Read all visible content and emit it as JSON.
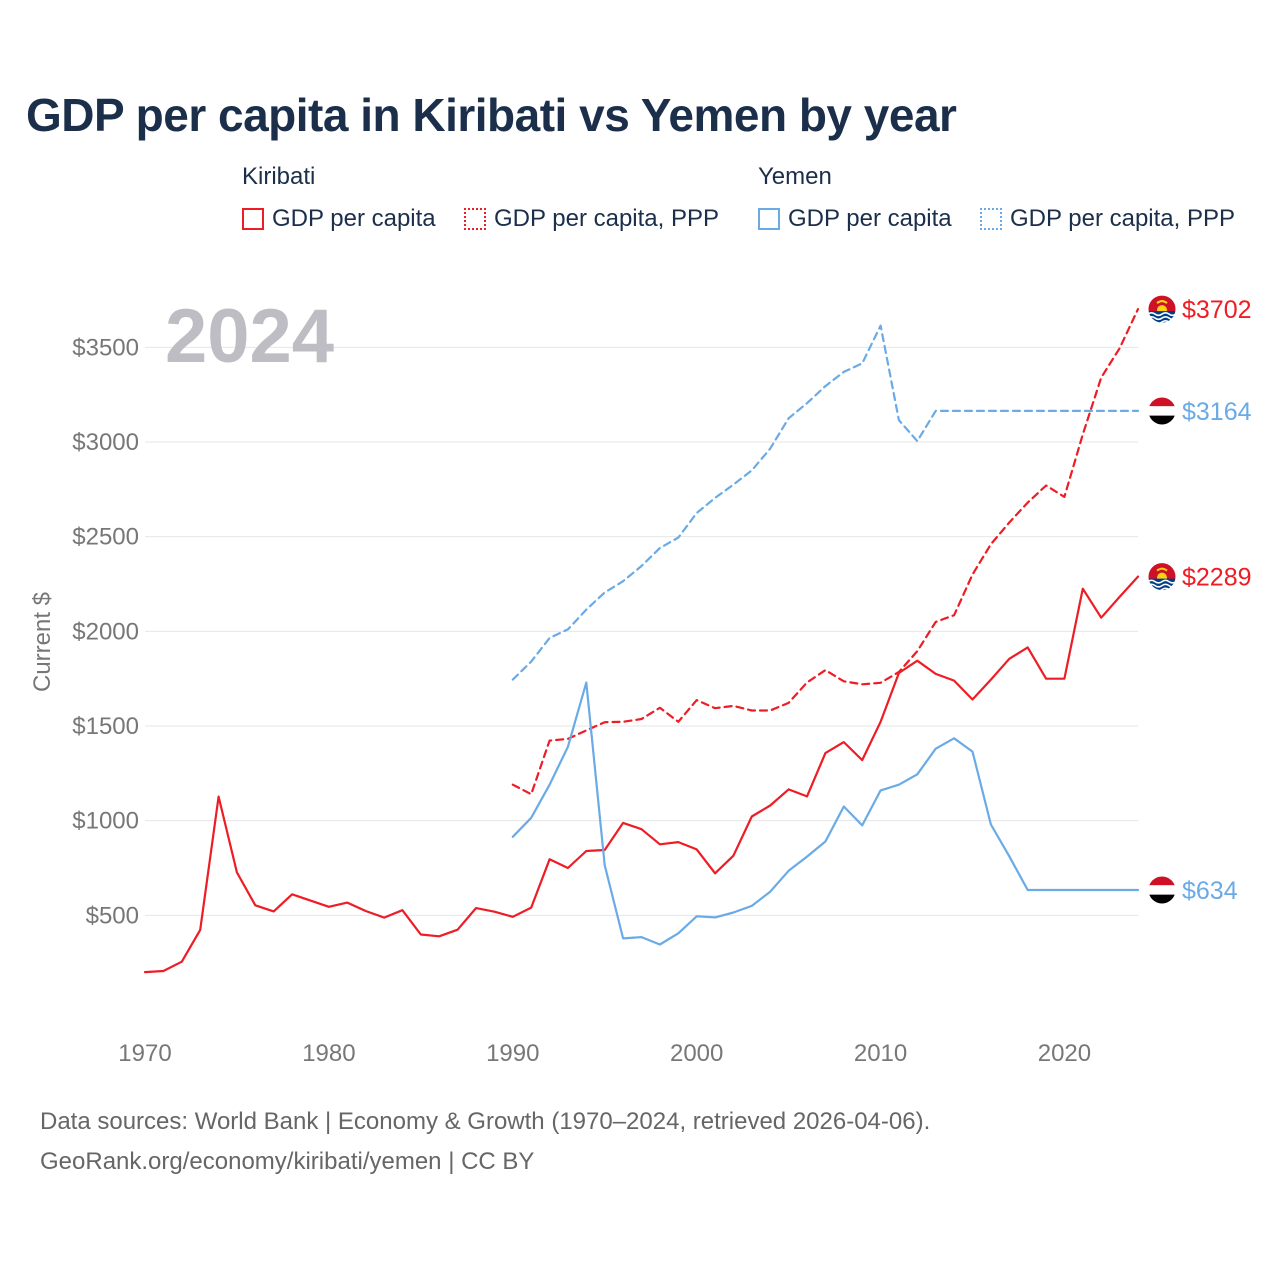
{
  "title": "GDP per capita in Kiribati vs Yemen by year",
  "legend": {
    "groups": [
      {
        "name": "Kiribati",
        "items": [
          {
            "label": "GDP per capita",
            "style": "solid",
            "color": "#ee1c24"
          },
          {
            "label": "GDP per capita, PPP",
            "style": "dotted",
            "color": "#ee1c24"
          }
        ]
      },
      {
        "name": "Yemen",
        "items": [
          {
            "label": "GDP per capita",
            "style": "solid",
            "color": "#6aaae6"
          },
          {
            "label": "GDP per capita, PPP",
            "style": "dotted",
            "color": "#6aaae6"
          }
        ]
      }
    ]
  },
  "year_overlay": "2024",
  "footer": {
    "sources": "Data sources: World Bank | Economy & Growth (1970–2024, retrieved 2026-04-06).",
    "link": "GeoRank.org/economy/kiribati/yemen | CC BY"
  },
  "colors": {
    "kiribati": "#ee1c24",
    "yemen": "#6aaae6",
    "title": "#1b2f4b",
    "axis_text": "#777777"
  },
  "chart_data": {
    "type": "line",
    "title": "GDP per capita in Kiribati vs Yemen by year",
    "xlabel": "",
    "ylabel": "Current $",
    "xlim": [
      1970,
      2024
    ],
    "ylim": [
      0,
      3750
    ],
    "x_ticks": [
      1970,
      1980,
      1990,
      2000,
      2010,
      2020
    ],
    "y_ticks": [
      500,
      1000,
      1500,
      2000,
      2500,
      3000,
      3500
    ],
    "y_tick_labels": [
      "$500",
      "$1000",
      "$1500",
      "$2000",
      "$2500",
      "$3000",
      "$3500"
    ],
    "grid": true,
    "series": [
      {
        "name": "Kiribati GDP per capita",
        "country": "kiribati",
        "style": "solid",
        "color": "#ee1c24",
        "x": [
          1970,
          1971,
          1972,
          1973,
          1974,
          1975,
          1976,
          1977,
          1978,
          1979,
          1980,
          1981,
          1982,
          1983,
          1984,
          1985,
          1986,
          1987,
          1988,
          1989,
          1990,
          1991,
          1992,
          1993,
          1994,
          1995,
          1996,
          1997,
          1998,
          1999,
          2000,
          2001,
          2002,
          2003,
          2004,
          2005,
          2006,
          2007,
          2008,
          2009,
          2010,
          2011,
          2012,
          2013,
          2014,
          2015,
          2016,
          2017,
          2018,
          2019,
          2020,
          2021,
          2022,
          2023,
          2024
        ],
        "y": [
          200,
          206,
          255,
          423,
          1127,
          727,
          553,
          521,
          611,
          578,
          545,
          567,
          523,
          488,
          527,
          399,
          389,
          424,
          538,
          519,
          492,
          541,
          796,
          750,
          840,
          845,
          988,
          955,
          875,
          887,
          848,
          722,
          815,
          1022,
          1080,
          1165,
          1128,
          1357,
          1415,
          1320,
          1522,
          1780,
          1845,
          1775,
          1740,
          1640,
          1745,
          1855,
          1915,
          1750,
          1750,
          2225,
          2072,
          2182,
          2289
        ],
        "end_label": "$2289"
      },
      {
        "name": "Kiribati GDP per capita, PPP",
        "country": "kiribati",
        "style": "dashed",
        "color": "#ee1c24",
        "x": [
          1990,
          1991,
          1992,
          1993,
          1994,
          1995,
          1996,
          1997,
          1998,
          1999,
          2000,
          2001,
          2002,
          2003,
          2004,
          2005,
          2006,
          2007,
          2008,
          2009,
          2010,
          2011,
          2012,
          2013,
          2014,
          2015,
          2016,
          2017,
          2018,
          2019,
          2020,
          2021,
          2022,
          2023,
          2024
        ],
        "y": [
          1190,
          1140,
          1423,
          1432,
          1477,
          1520,
          1522,
          1537,
          1596,
          1522,
          1637,
          1594,
          1606,
          1582,
          1582,
          1622,
          1730,
          1795,
          1736,
          1720,
          1728,
          1785,
          1895,
          2050,
          2085,
          2300,
          2460,
          2575,
          2680,
          2770,
          2710,
          3040,
          3340,
          3495,
          3702
        ],
        "end_label": "$3702"
      },
      {
        "name": "Yemen GDP per capita",
        "country": "yemen",
        "style": "solid",
        "color": "#6aaae6",
        "x": [
          1990,
          1991,
          1992,
          1993,
          1994,
          1995,
          1996,
          1997,
          1998,
          1999,
          2000,
          2001,
          2002,
          2003,
          2004,
          2005,
          2006,
          2007,
          2008,
          2009,
          2010,
          2011,
          2012,
          2013,
          2014,
          2015,
          2016,
          2017,
          2018,
          2019,
          2020,
          2021,
          2022,
          2023,
          2024
        ],
        "y": [
          915,
          1015,
          1190,
          1390,
          1730,
          765,
          378,
          385,
          346,
          405,
          495,
          489,
          515,
          550,
          625,
          735,
          810,
          890,
          1075,
          975,
          1160,
          1190,
          1245,
          1380,
          1435,
          1365,
          980,
          812,
          634,
          634,
          634,
          634,
          634,
          634,
          634
        ],
        "end_label": "$634"
      },
      {
        "name": "Yemen GDP per capita, PPP",
        "country": "yemen",
        "style": "dashed",
        "color": "#6aaae6",
        "x": [
          1990,
          1991,
          1992,
          1993,
          1994,
          1995,
          1996,
          1997,
          1998,
          1999,
          2000,
          2001,
          2002,
          2003,
          2004,
          2005,
          2006,
          2007,
          2008,
          2009,
          2010,
          2011,
          2012,
          2013,
          2014,
          2015,
          2016,
          2017,
          2018,
          2019,
          2020,
          2021,
          2022,
          2023,
          2024
        ],
        "y": [
          1745,
          1840,
          1965,
          2010,
          2115,
          2205,
          2265,
          2345,
          2440,
          2495,
          2625,
          2705,
          2775,
          2850,
          2965,
          3125,
          3205,
          3295,
          3370,
          3415,
          3615,
          3115,
          3005,
          3164,
          3164,
          3164,
          3164,
          3164,
          3164,
          3164,
          3164,
          3164,
          3164,
          3164,
          3164
        ],
        "end_label": "$3164"
      }
    ],
    "end_label_order": [
      "Kiribati GDP per capita, PPP",
      "Yemen GDP per capita, PPP",
      "Kiribati GDP per capita",
      "Yemen GDP per capita"
    ]
  }
}
